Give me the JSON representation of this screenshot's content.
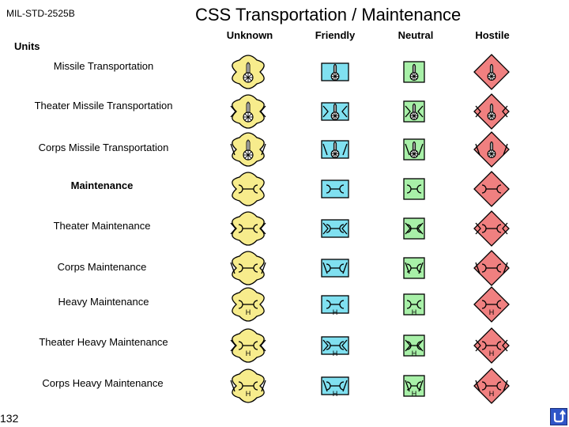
{
  "header": {
    "standard": "MIL-STD-2525B",
    "title": "CSS  Transportation / Maintenance"
  },
  "columns": [
    {
      "key": "unknown",
      "label": "Unknown",
      "fill": "#f7ec8c"
    },
    {
      "key": "friendly",
      "label": "Friendly",
      "fill": "#80e0f0"
    },
    {
      "key": "neutral",
      "label": "Neutral",
      "fill": "#a8f0a8"
    },
    {
      "key": "hostile",
      "label": "Hostile",
      "fill": "#f08080"
    }
  ],
  "section_label": "Units",
  "rows": [
    {
      "label": "Missile Transportation",
      "icon": "missile-icon",
      "echelon": "none",
      "bold": false
    },
    {
      "label": "Theater Missile Transportation",
      "icon": "missile-icon",
      "echelon": "theater",
      "bold": false
    },
    {
      "label": "Corps Missile Transportation",
      "icon": "missile-icon",
      "echelon": "corps",
      "bold": false
    },
    {
      "label": "Maintenance",
      "icon": "wrench-icon",
      "echelon": "none",
      "bold": true
    },
    {
      "label": "Theater Maintenance",
      "icon": "wrench-icon",
      "echelon": "theater",
      "bold": false
    },
    {
      "label": "Corps Maintenance",
      "icon": "wrench-icon",
      "echelon": "corps",
      "bold": false
    },
    {
      "label": "Heavy Maintenance",
      "icon": "heavy-wrench-icon",
      "echelon": "none",
      "bold": false
    },
    {
      "label": "Theater Heavy Maintenance",
      "icon": "heavy-wrench-icon",
      "echelon": "theater",
      "bold": false
    },
    {
      "label": "Corps Heavy Maintenance",
      "icon": "heavy-wrench-icon",
      "echelon": "corps",
      "bold": false
    }
  ],
  "heavy_letter": "H",
  "footer": {
    "slide_number": "132",
    "nav_icon": "return-arrow-icon"
  }
}
